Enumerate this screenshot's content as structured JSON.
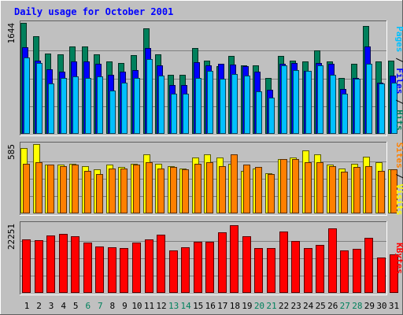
{
  "title": "Daily usage for October 2001",
  "colors": {
    "background": "#C0C0C0",
    "plot_bg": "#C0C0C0",
    "frame_dark": "#606060",
    "frame_light": "#FFFFFF",
    "grid": "#808080",
    "title": "#0000FF",
    "hits": "#00805C",
    "files": "#0000FF",
    "pages": "#00C0FF",
    "visits": "#FFFF00",
    "sites": "#FF8000",
    "kbytes": "#FF0000",
    "weekday": "#000000",
    "weekend": "#00805C",
    "divider": "#000000"
  },
  "chart_data": [
    {
      "type": "bar",
      "panel": "hits-files-pages",
      "ytick_label": "1644",
      "ylim": [
        0,
        1644
      ],
      "grid": true,
      "side_label": [
        {
          "text": "Pages",
          "series": "pages"
        },
        {
          "text": " / ",
          "series": "divider"
        },
        {
          "text": "Files",
          "series": "files"
        },
        {
          "text": " / ",
          "series": "divider"
        },
        {
          "text": "Hits",
          "series": "hits"
        }
      ],
      "categories": [
        "1",
        "2",
        "3",
        "4",
        "5",
        "6",
        "7",
        "8",
        "9",
        "10",
        "11",
        "12",
        "13",
        "14",
        "15",
        "16",
        "17",
        "18",
        "19",
        "20",
        "21",
        "22",
        "23",
        "24",
        "25",
        "26",
        "27",
        "28",
        "29",
        "30",
        "31"
      ],
      "series": [
        {
          "name": "Hits",
          "key": "hits",
          "values": [
            1644,
            1440,
            1190,
            1180,
            1290,
            1300,
            1180,
            1070,
            1050,
            1170,
            1560,
            1180,
            880,
            880,
            1270,
            1090,
            1000,
            1150,
            1010,
            1010,
            830,
            1150,
            1080,
            1070,
            1240,
            1070,
            830,
            1040,
            1600,
            1070,
            1080
          ]
        },
        {
          "name": "Files",
          "key": "files",
          "values": [
            1280,
            1080,
            960,
            920,
            1070,
            1070,
            1040,
            880,
            920,
            940,
            1270,
            1010,
            720,
            720,
            1060,
            1020,
            1040,
            1030,
            1000,
            920,
            650,
            1040,
            1050,
            930,
            1050,
            1040,
            670,
            830,
            1290,
            760,
            860
          ]
        },
        {
          "name": "Pages",
          "key": "pages",
          "values": [
            1130,
            1050,
            750,
            830,
            850,
            830,
            850,
            640,
            760,
            830,
            1110,
            860,
            600,
            600,
            830,
            930,
            820,
            890,
            860,
            630,
            540,
            1010,
            950,
            930,
            1020,
            880,
            590,
            820,
            1040,
            750,
            760
          ]
        }
      ]
    },
    {
      "type": "bar",
      "panel": "visits-sites",
      "ytick_label": "585",
      "ylim": [
        0,
        585
      ],
      "grid": true,
      "side_label": [
        {
          "text": "Sites",
          "series": "sites"
        },
        {
          "text": " / ",
          "series": "divider"
        },
        {
          "text": "Visits",
          "series": "visits"
        }
      ],
      "categories": [
        "1",
        "2",
        "3",
        "4",
        "5",
        "6",
        "7",
        "8",
        "9",
        "10",
        "11",
        "12",
        "13",
        "14",
        "15",
        "16",
        "17",
        "18",
        "19",
        "20",
        "21",
        "22",
        "23",
        "24",
        "25",
        "26",
        "27",
        "28",
        "29",
        "30",
        "31"
      ],
      "series": [
        {
          "name": "Visits",
          "key": "visits",
          "values": [
            550,
            585,
            410,
            410,
            420,
            400,
            370,
            410,
            390,
            420,
            500,
            420,
            400,
            380,
            470,
            500,
            470,
            420,
            360,
            380,
            340,
            460,
            470,
            530,
            500,
            410,
            380,
            420,
            480,
            430,
            370
          ]
        },
        {
          "name": "Sites",
          "key": "sites",
          "values": [
            420,
            430,
            410,
            400,
            410,
            360,
            330,
            380,
            380,
            410,
            430,
            380,
            390,
            370,
            420,
            430,
            400,
            500,
            410,
            390,
            330,
            460,
            460,
            430,
            430,
            400,
            350,
            390,
            400,
            360,
            370
          ]
        }
      ]
    },
    {
      "type": "bar",
      "panel": "kbytes",
      "ytick_label": "22251",
      "ylim": [
        0,
        22251
      ],
      "grid": true,
      "side_label": [
        {
          "text": "KBytes",
          "series": "kbytes"
        }
      ],
      "categories": [
        "1",
        "2",
        "3",
        "4",
        "5",
        "6",
        "7",
        "8",
        "9",
        "10",
        "11",
        "12",
        "13",
        "14",
        "15",
        "16",
        "17",
        "18",
        "19",
        "20",
        "21",
        "22",
        "23",
        "24",
        "25",
        "26",
        "27",
        "28",
        "29",
        "30",
        "31"
      ],
      "series": [
        {
          "name": "KBytes",
          "key": "kbytes",
          "values": [
            17300,
            17000,
            18500,
            19000,
            18300,
            16300,
            14800,
            14600,
            14300,
            16100,
            17300,
            18700,
            13600,
            14600,
            16500,
            16500,
            19400,
            21700,
            18100,
            14300,
            14500,
            19700,
            16600,
            14500,
            15400,
            20700,
            13600,
            14200,
            17800,
            11400,
            12500
          ]
        }
      ]
    }
  ],
  "x_labels": [
    {
      "label": "1",
      "weekend": false
    },
    {
      "label": "2",
      "weekend": false
    },
    {
      "label": "3",
      "weekend": false
    },
    {
      "label": "4",
      "weekend": false
    },
    {
      "label": "5",
      "weekend": false
    },
    {
      "label": "6",
      "weekend": true
    },
    {
      "label": "7",
      "weekend": true
    },
    {
      "label": "8",
      "weekend": false
    },
    {
      "label": "9",
      "weekend": false
    },
    {
      "label": "10",
      "weekend": false
    },
    {
      "label": "11",
      "weekend": false
    },
    {
      "label": "12",
      "weekend": false
    },
    {
      "label": "13",
      "weekend": true
    },
    {
      "label": "14",
      "weekend": true
    },
    {
      "label": "15",
      "weekend": false
    },
    {
      "label": "16",
      "weekend": false
    },
    {
      "label": "17",
      "weekend": false
    },
    {
      "label": "18",
      "weekend": false
    },
    {
      "label": "19",
      "weekend": false
    },
    {
      "label": "20",
      "weekend": true
    },
    {
      "label": "21",
      "weekend": true
    },
    {
      "label": "22",
      "weekend": false
    },
    {
      "label": "23",
      "weekend": false
    },
    {
      "label": "24",
      "weekend": false
    },
    {
      "label": "25",
      "weekend": false
    },
    {
      "label": "26",
      "weekend": false
    },
    {
      "label": "27",
      "weekend": true
    },
    {
      "label": "28",
      "weekend": true
    },
    {
      "label": "29",
      "weekend": false
    },
    {
      "label": "30",
      "weekend": false
    },
    {
      "label": "31",
      "weekend": false
    }
  ]
}
